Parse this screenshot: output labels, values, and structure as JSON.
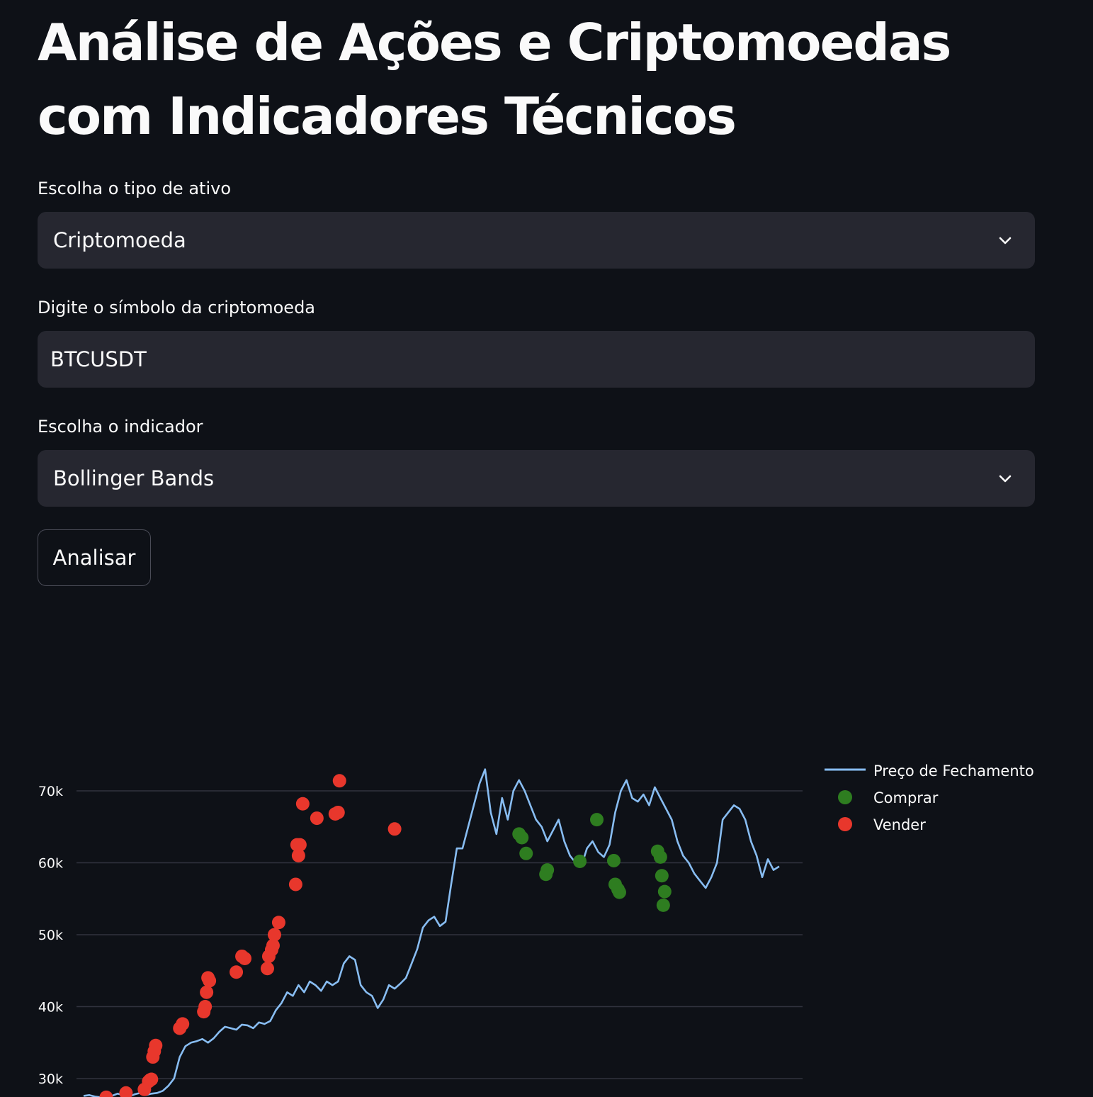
{
  "page": {
    "title": "Análise de Ações e Criptomoedas com Indicadores Técnicos"
  },
  "form": {
    "asset_type": {
      "label": "Escolha o tipo de ativo",
      "value": "Criptomoeda"
    },
    "symbol": {
      "label": "Digite o símbolo da criptomoeda",
      "value": "BTCUSDT"
    },
    "indicator": {
      "label": "Escolha o indicador",
      "value": "Bollinger Bands"
    },
    "analyze_button": "Analisar"
  },
  "icons": {
    "dropdown": "chevron-down-icon"
  },
  "colors": {
    "background": "#0e1117",
    "field_background": "#262730",
    "price_line": "#88bdf2",
    "buy": "#2e7d20",
    "sell": "#e8372c",
    "grid": "#31333f"
  },
  "chart_data": {
    "type": "line",
    "title": "",
    "xlabel": "",
    "ylabel": "",
    "yticks": [
      30000,
      40000,
      50000,
      60000,
      70000
    ],
    "ytick_labels": [
      "30k",
      "40k",
      "50k",
      "60k",
      "70k"
    ],
    "legend": {
      "position": "top-right",
      "entries": [
        "Preço de Fechamento",
        "Comprar",
        "Vender"
      ]
    },
    "series": [
      {
        "name": "Preço de Fechamento",
        "style": "line",
        "x": [
          0,
          4,
          8,
          12,
          16,
          20,
          24,
          28,
          32,
          36,
          40,
          44,
          48,
          52,
          56,
          60,
          64,
          68,
          72,
          76,
          80,
          84,
          88,
          92,
          96,
          100,
          104,
          108,
          112,
          116,
          120,
          124,
          128,
          132,
          136,
          140,
          144,
          148,
          152,
          156,
          160,
          164,
          168,
          172,
          176,
          180,
          184,
          188,
          192,
          196,
          200,
          204,
          208,
          212,
          216,
          220,
          224,
          228,
          232,
          236,
          240,
          244,
          248,
          252,
          256,
          260,
          264,
          268,
          272,
          276,
          280,
          284,
          288,
          292,
          296,
          300,
          304,
          308,
          312,
          316,
          320,
          324,
          328,
          332,
          336,
          340,
          344,
          348,
          352,
          356,
          360,
          364,
          368,
          372,
          376,
          380,
          384,
          388,
          392,
          396,
          400,
          404,
          408,
          412,
          416,
          420,
          424,
          428,
          432,
          436,
          440,
          444,
          448,
          452,
          456,
          460,
          464,
          468,
          472,
          476,
          480,
          484,
          488,
          492
        ],
        "y": [
          27600,
          27700,
          27500,
          27400,
          27800,
          27600,
          27900,
          27700,
          27500,
          27800,
          28000,
          27700,
          27900,
          28000,
          28300,
          29000,
          30000,
          33000,
          34500,
          35000,
          35200,
          35500,
          35000,
          35600,
          36500,
          37200,
          37000,
          36800,
          37500,
          37400,
          37000,
          37800,
          37600,
          38000,
          39500,
          40500,
          42000,
          41500,
          43000,
          42000,
          43500,
          43000,
          42200,
          43500,
          43000,
          43500,
          46000,
          47000,
          46500,
          43000,
          42000,
          41500,
          39800,
          41000,
          43000,
          42500,
          43200,
          44000,
          46000,
          48000,
          51000,
          52000,
          52500,
          51200,
          51800,
          57000,
          62000,
          62000,
          65000,
          68000,
          71000,
          73000,
          67000,
          64000,
          69000,
          66000,
          70000,
          71500,
          70000,
          68000,
          66000,
          65000,
          63000,
          64500,
          66000,
          63000,
          61000,
          60000,
          59500,
          62000,
          63000,
          61500,
          60800,
          62500,
          67000,
          70000,
          71500,
          69000,
          68500,
          69500,
          68000,
          70500,
          69000,
          67500,
          66000,
          63000,
          61000,
          60000,
          58500,
          57500,
          56500,
          58000,
          60000,
          66000,
          67000,
          68000,
          67500,
          66000,
          63000,
          61000,
          58000,
          60500,
          59000,
          59500
        ]
      },
      {
        "name": "Comprar",
        "style": "markers",
        "x": [
          308,
          310,
          313,
          327,
          328,
          351,
          363,
          375,
          376,
          378,
          379,
          406,
          408,
          409,
          410,
          411
        ],
        "y": [
          64000,
          63500,
          61300,
          58400,
          59000,
          60200,
          66000,
          60300,
          57000,
          56300,
          55900,
          61600,
          60800,
          58200,
          54100,
          56000
        ]
      },
      {
        "name": "Vender",
        "style": "markers",
        "x": [
          16,
          30,
          43,
          46,
          47,
          48,
          49,
          50,
          51,
          68,
          70,
          85,
          86,
          87,
          88,
          89,
          108,
          112,
          114,
          130,
          131,
          133,
          134,
          135,
          138,
          150,
          151,
          152,
          153,
          155,
          165,
          178,
          180,
          181,
          220
        ],
        "y": [
          27400,
          28000,
          28500,
          29600,
          29800,
          29900,
          33000,
          33800,
          34600,
          37000,
          37600,
          39300,
          40000,
          42000,
          44000,
          43600,
          44800,
          47000,
          46700,
          45300,
          47000,
          47900,
          48500,
          50000,
          51700,
          57000,
          62500,
          61000,
          62500,
          68200,
          66200,
          66800,
          67000,
          71400,
          64700
        ]
      }
    ]
  }
}
